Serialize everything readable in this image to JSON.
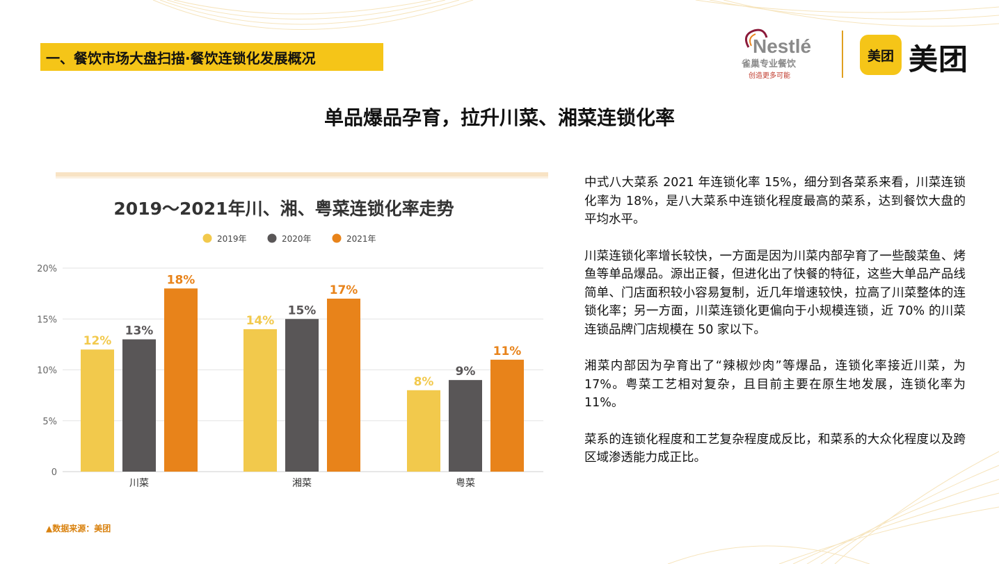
{
  "section_title": "一、餐饮市场大盘扫描·餐饮连锁化发展概况",
  "main_title": "单品爆品孕育，拉升川菜、湘菜连锁化率",
  "logos": {
    "nestle_wordmark": "Nestlé",
    "nestle_sub": "雀巢专业餐饮",
    "nestle_tagline": "创造更多可能",
    "meituan_box": "美团",
    "meituan_text": "美团"
  },
  "paragraphs": [
    "中式八大菜系 2021 年连锁化率 15%，细分到各菜系来看，川菜连锁化率为 18%，是八大菜系中连锁化程度最高的菜系，达到餐饮大盘的平均水平。",
    "川菜连锁化率增长较快，一方面是因为川菜内部孕育了一些酸菜鱼、烤鱼等单品爆品。源出正餐，但进化出了快餐的特征，这些大单品产品线简单、门店面积较小容易复制，近几年增速较快，拉高了川菜整体的连锁化率；另一方面，川菜连锁化更偏向于小规模连锁，近 70% 的川菜连锁品牌门店规模在 50 家以下。",
    "湘菜内部因为孕育出了“辣椒炒肉”等爆品，连锁化率接近川菜，为 17%。粤菜工艺相对复杂，且目前主要在原生地发展，连锁化率为 11%。",
    "菜系的连锁化程度和工艺复杂程度成反比，和菜系的大众化程度以及跨区域渗透能力成正比。"
  ],
  "source": "▲数据来源：美团",
  "colors": {
    "accent_yellow": "#f5c518",
    "s2019": "#f2c94c",
    "s2020": "#595657",
    "s2021": "#e8831a"
  },
  "chart_data": {
    "type": "bar",
    "title": "2019～2021年川、湘、粤菜连锁化率走势",
    "categories": [
      "川菜",
      "湘菜",
      "粤菜"
    ],
    "series": [
      {
        "name": "2019年",
        "values": [
          12,
          14,
          8
        ],
        "labels": [
          "12%",
          "14%",
          "8%"
        ],
        "color": "#f2c94c",
        "label_color": "#f2c94c"
      },
      {
        "name": "2020年",
        "values": [
          13,
          15,
          9
        ],
        "labels": [
          "13%",
          "15%",
          "9%"
        ],
        "color": "#595657",
        "label_color": "#595657"
      },
      {
        "name": "2021年",
        "values": [
          18,
          17,
          11
        ],
        "labels": [
          "18%",
          "17%",
          "11%"
        ],
        "color": "#e8831a",
        "label_color": "#e8831a"
      }
    ],
    "yticks": [
      "0",
      "5%",
      "10%",
      "15%",
      "20%"
    ],
    "ytick_values": [
      0,
      5,
      10,
      15,
      20
    ],
    "ylim": [
      0,
      20
    ],
    "legend_position": "top-center",
    "grid": true
  }
}
